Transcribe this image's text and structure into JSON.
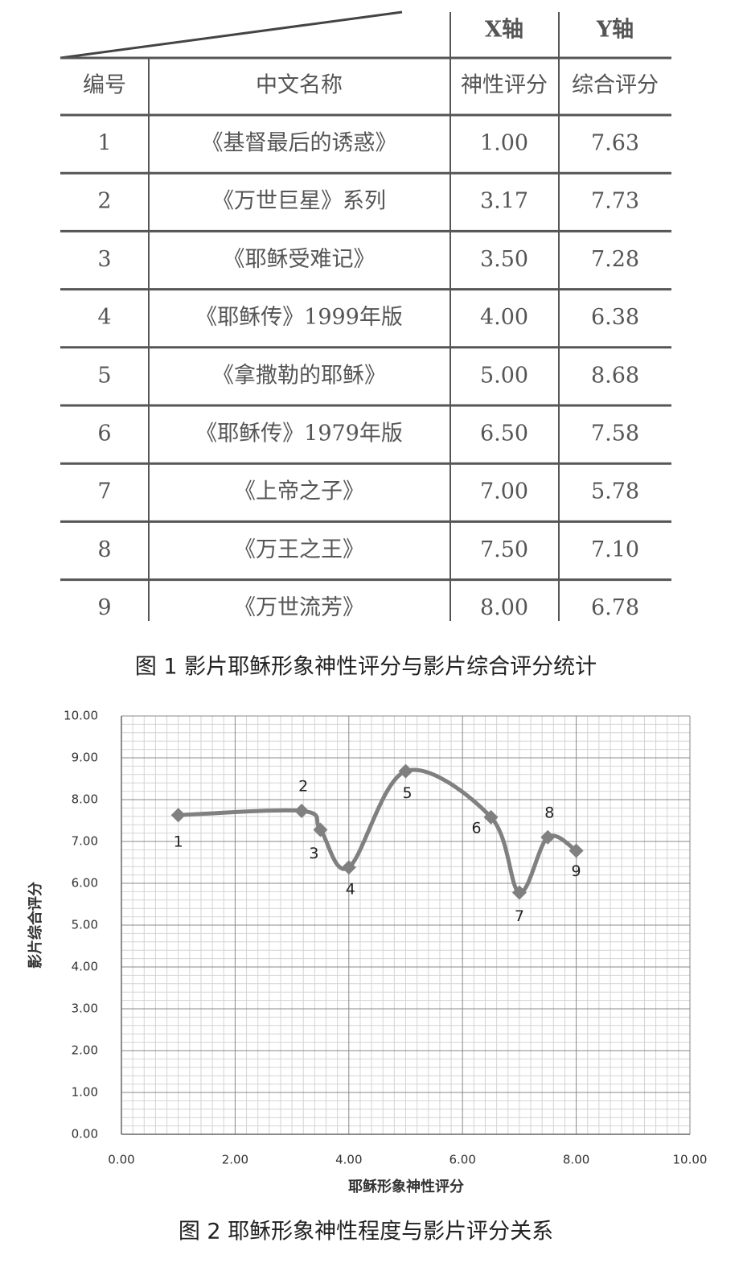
{
  "table": {
    "axis_headers": [
      "X轴",
      "Y轴"
    ],
    "columns": [
      "编号",
      "中文名称",
      "神性评分",
      "综合评分"
    ],
    "rows": [
      [
        "1",
        "《基督最后的诱惑》",
        "1.00",
        "7.63"
      ],
      [
        "2",
        "《万世巨星》系列",
        "3.17",
        "7.73"
      ],
      [
        "3",
        "《耶稣受难记》",
        "3.50",
        "7.28"
      ],
      [
        "4",
        "《耶稣传》1999年版",
        "4.00",
        "6.38"
      ],
      [
        "5",
        "《拿撒勒的耶稣》",
        "5.00",
        "8.68"
      ],
      [
        "6",
        "《耶稣传》1979年版",
        "6.50",
        "7.58"
      ],
      [
        "7",
        "《上帝之子》",
        "7.00",
        "5.78"
      ],
      [
        "8",
        "《万王之王》",
        "7.50",
        "7.10"
      ],
      [
        "9",
        "《万世流芳》",
        "8.00",
        "6.78"
      ]
    ]
  },
  "figure1_caption": "图 1  影片耶稣形象神性评分与影片综合评分统计",
  "chart_data": {
    "type": "line",
    "x_label": "耶稣形象神性评分",
    "y_label": "影片综合评分",
    "caption": "图 2  耶稣形象神性程度与影片评分关系",
    "x": [
      1.0,
      3.17,
      3.5,
      4.0,
      5.0,
      6.5,
      7.0,
      7.5,
      8.0
    ],
    "series": [
      {
        "color": "#808080",
        "values": [
          7.63,
          7.73,
          7.28,
          6.38,
          8.68,
          7.58,
          5.78,
          7.1,
          6.78
        ],
        "point_labels": [
          "1",
          "2",
          "3",
          "4",
          "5",
          "6",
          "7",
          "8",
          "9"
        ]
      }
    ],
    "xlim": [
      0,
      10
    ],
    "ylim": [
      0,
      10
    ],
    "xticks": [
      {
        "value": 0,
        "label": "0.00"
      },
      {
        "value": 2,
        "label": "2.00"
      },
      {
        "value": 4,
        "label": "4.00"
      },
      {
        "value": 6,
        "label": "6.00"
      },
      {
        "value": 8,
        "label": "8.00"
      },
      {
        "value": 10,
        "label": "10.00"
      }
    ],
    "yticks": [
      {
        "value": 0,
        "label": "0.00"
      },
      {
        "value": 1,
        "label": "1.00"
      },
      {
        "value": 2,
        "label": "2.00"
      },
      {
        "value": 3,
        "label": "3.00"
      },
      {
        "value": 4,
        "label": "4.00"
      },
      {
        "value": 5,
        "label": "5.00"
      },
      {
        "value": 6,
        "label": "6.00"
      },
      {
        "value": 7,
        "label": "7.00"
      },
      {
        "value": 8,
        "label": "8.00"
      },
      {
        "value": 9,
        "label": "9.00"
      },
      {
        "value": 10,
        "label": "10.00"
      }
    ],
    "grid": true,
    "minor_grid": true,
    "smooth": true
  }
}
